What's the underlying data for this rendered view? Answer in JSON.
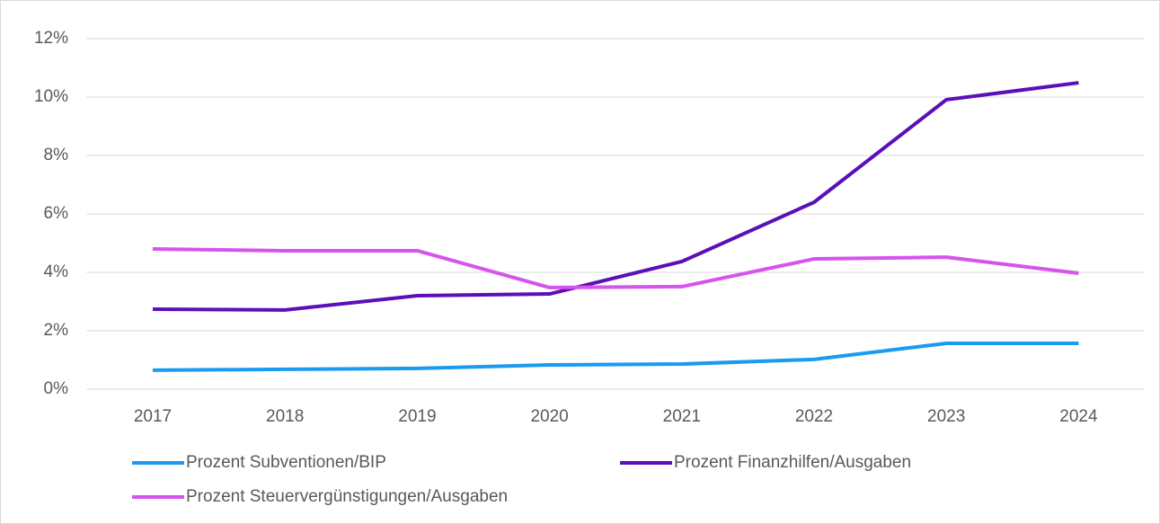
{
  "chart_data": {
    "type": "line",
    "categories": [
      "2017",
      "2018",
      "2019",
      "2020",
      "2021",
      "2022",
      "2023",
      "2024"
    ],
    "series": [
      {
        "name": "Prozent Subventionen/BIP",
        "color": "#1a9af0",
        "values": [
          0.65,
          0.68,
          0.71,
          0.83,
          0.86,
          1.02,
          1.57,
          1.57
        ]
      },
      {
        "name": "Prozent Finanzhilfen/Ausgaben",
        "color": "#5a0fb8",
        "values": [
          2.74,
          2.71,
          3.2,
          3.26,
          4.37,
          6.4,
          9.91,
          10.49
        ]
      },
      {
        "name": "Prozent Steuervergünstigungen/Ausgaben",
        "color": "#d653ee",
        "values": [
          4.8,
          4.74,
          4.74,
          3.48,
          3.51,
          4.46,
          4.52,
          3.97
        ]
      }
    ],
    "ylim": [
      0,
      12
    ],
    "yticks": [
      {
        "value": 0,
        "label": "0%"
      },
      {
        "value": 2,
        "label": "2%"
      },
      {
        "value": 4,
        "label": "4%"
      },
      {
        "value": 6,
        "label": "6%"
      },
      {
        "value": 8,
        "label": "8%"
      },
      {
        "value": 10,
        "label": "10%"
      },
      {
        "value": 12,
        "label": "12%"
      }
    ],
    "grid": true
  }
}
